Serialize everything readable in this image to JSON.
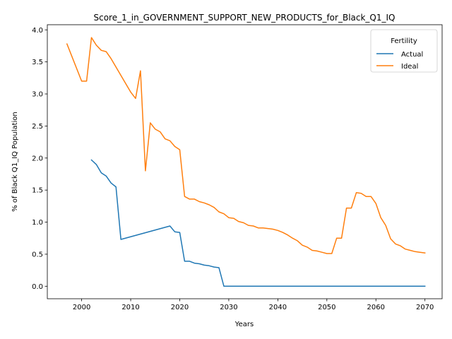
{
  "chart_data": {
    "type": "line",
    "title": "Score_1_in_GOVERNMENT_SUPPORT_NEW_PRODUCTS_for_Black_Q1_IQ",
    "xlabel": "Years",
    "ylabel": "% of Black Q1_IQ Population",
    "xlim": [
      1993,
      2073.5
    ],
    "ylim": [
      -0.195,
      4.08
    ],
    "xticks": [
      2000,
      2010,
      2020,
      2030,
      2040,
      2050,
      2060,
      2070
    ],
    "yticks": [
      "0.0",
      "0.5",
      "1.0",
      "1.5",
      "2.0",
      "2.5",
      "3.0",
      "3.5",
      "4.0"
    ],
    "legend": {
      "title": "Fertility",
      "placement": "top-right"
    },
    "grid": false,
    "series": [
      {
        "name": "Actual",
        "color": "#1f77b4",
        "x": [
          2002,
          2003,
          2004,
          2005,
          2006,
          2007,
          2008,
          2018,
          2019,
          2020,
          2021,
          2022,
          2023,
          2024,
          2025,
          2026,
          2027,
          2028,
          2029,
          2030,
          2040,
          2050,
          2060,
          2070
        ],
        "y": [
          1.97,
          1.9,
          1.77,
          1.72,
          1.61,
          1.55,
          0.73,
          0.94,
          0.85,
          0.84,
          0.39,
          0.39,
          0.36,
          0.35,
          0.33,
          0.32,
          0.3,
          0.29,
          0.0,
          0.0,
          0.0,
          0.0,
          0.0,
          0.0
        ]
      },
      {
        "name": "Ideal",
        "color": "#ff7f0e",
        "x": [
          1997,
          2000,
          2001,
          2002,
          2003,
          2004,
          2005,
          2006,
          2010,
          2011,
          2012,
          2013,
          2014,
          2015,
          2016,
          2017,
          2018,
          2019,
          2020,
          2021,
          2022,
          2023,
          2024,
          2025,
          2026,
          2027,
          2028,
          2029,
          2030,
          2031,
          2032,
          2033,
          2034,
          2035,
          2036,
          2037,
          2038,
          2039,
          2040,
          2041,
          2042,
          2043,
          2044,
          2045,
          2046,
          2047,
          2048,
          2049,
          2050,
          2051,
          2052,
          2053,
          2054,
          2055,
          2056,
          2057,
          2058,
          2059,
          2060,
          2061,
          2062,
          2063,
          2064,
          2065,
          2066,
          2067,
          2068,
          2069,
          2070
        ],
        "y": [
          3.78,
          3.2,
          3.2,
          3.88,
          3.76,
          3.68,
          3.66,
          3.55,
          3.03,
          2.93,
          3.36,
          1.8,
          2.55,
          2.45,
          2.41,
          2.3,
          2.27,
          2.18,
          2.13,
          1.4,
          1.36,
          1.36,
          1.32,
          1.3,
          1.27,
          1.23,
          1.16,
          1.13,
          1.07,
          1.06,
          1.01,
          0.99,
          0.95,
          0.94,
          0.91,
          0.91,
          0.9,
          0.89,
          0.87,
          0.84,
          0.8,
          0.75,
          0.71,
          0.64,
          0.61,
          0.56,
          0.55,
          0.53,
          0.51,
          0.51,
          0.75,
          0.75,
          1.22,
          1.22,
          1.46,
          1.45,
          1.4,
          1.4,
          1.29,
          1.07,
          0.95,
          0.74,
          0.66,
          0.63,
          0.58,
          0.56,
          0.54,
          0.53,
          0.52
        ]
      }
    ]
  }
}
